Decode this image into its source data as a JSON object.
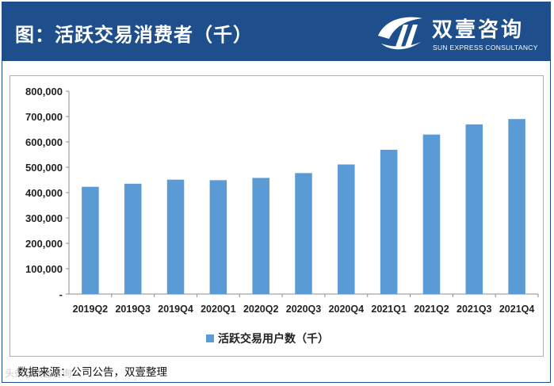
{
  "header": {
    "title": "图：活跃交易消费者（千）",
    "logo_cn": "双壹咨询",
    "logo_en": "SUN EXPRESS CONSULTANCY",
    "logo_icon": "swoosh-logo-icon",
    "background_color": "#1e4f8c"
  },
  "chart_data": {
    "type": "bar",
    "title": "",
    "xlabel": "",
    "ylabel": "",
    "categories": [
      "2019Q2",
      "2019Q3",
      "2019Q4",
      "2020Q1",
      "2020Q2",
      "2020Q3",
      "2020Q4",
      "2021Q1",
      "2021Q2",
      "2021Q3",
      "2021Q4"
    ],
    "series": [
      {
        "name": "活跃交易用户数（千）",
        "color": "#5b9bd5",
        "values": [
          423000,
          435000,
          451000,
          449000,
          458000,
          477000,
          511000,
          569000,
          629000,
          669000,
          690000
        ]
      }
    ],
    "ylim": [
      0,
      800000
    ],
    "yticks": [
      0,
      100000,
      200000,
      300000,
      400000,
      500000,
      600000,
      700000,
      800000
    ],
    "ytick_labels": [
      "-",
      "100,000",
      "200,000",
      "300,000",
      "400,000",
      "500,000",
      "600,000",
      "700,000",
      "800,000"
    ],
    "grid": false,
    "legend": "bottom-center"
  },
  "footer": {
    "source": "数据来源：公司公告，双壹整理",
    "watermark": "头条@双壹咨询"
  }
}
